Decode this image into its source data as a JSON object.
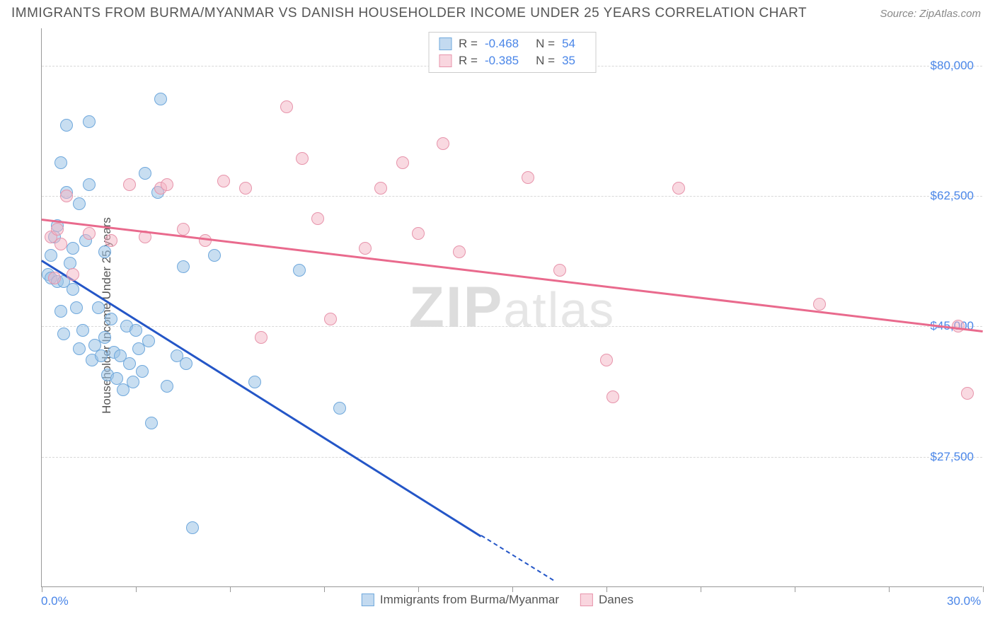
{
  "title": "IMMIGRANTS FROM BURMA/MYANMAR VS DANISH HOUSEHOLDER INCOME UNDER 25 YEARS CORRELATION CHART",
  "source": "Source: ZipAtlas.com",
  "watermark": "ZIPatlas",
  "chart": {
    "type": "scatter",
    "background_color": "#ffffff",
    "grid_color": "#d8d8d8",
    "axis_color": "#999999",
    "ylabel": "Householder Income Under 25 years",
    "ylabel_fontsize": 17,
    "xlim": [
      0,
      30
    ],
    "ylim": [
      10000,
      85000
    ],
    "y_ticks": [
      {
        "value": 27500,
        "label": "$27,500"
      },
      {
        "value": 45000,
        "label": "$45,000"
      },
      {
        "value": 62500,
        "label": "$62,500"
      },
      {
        "value": 80000,
        "label": "$80,000"
      }
    ],
    "x_ticks_minor": [
      0,
      3,
      6,
      9,
      12,
      15,
      18,
      21,
      24,
      27,
      30
    ],
    "x_tick_labels": [
      {
        "value": 0,
        "label": "0.0%"
      },
      {
        "value": 30,
        "label": "30.0%"
      }
    ],
    "series": [
      {
        "key": "blue",
        "name": "Immigrants from Burma/Myanmar",
        "marker_fill": "rgba(155,194,230,0.55)",
        "marker_stroke": "#6fa8dc",
        "line_color": "#2456c7",
        "marker_radius": 9,
        "R": "-0.468",
        "N": "54",
        "trend": {
          "x1": 0,
          "y1": 54000,
          "x2": 14,
          "y2": 17000
        },
        "trend_dashed_ext": {
          "x1": 14,
          "y1": 17000,
          "x2": 16.3,
          "y2": 11000
        },
        "points": [
          [
            0.2,
            52000
          ],
          [
            0.3,
            51500
          ],
          [
            0.3,
            54500
          ],
          [
            0.4,
            57000
          ],
          [
            0.5,
            58500
          ],
          [
            0.5,
            51000
          ],
          [
            0.6,
            67000
          ],
          [
            0.6,
            47000
          ],
          [
            0.7,
            44000
          ],
          [
            0.7,
            51000
          ],
          [
            0.8,
            63000
          ],
          [
            0.8,
            72000
          ],
          [
            0.9,
            53500
          ],
          [
            1.0,
            50000
          ],
          [
            1.0,
            55500
          ],
          [
            1.1,
            47500
          ],
          [
            1.2,
            61500
          ],
          [
            1.2,
            42000
          ],
          [
            1.3,
            44500
          ],
          [
            1.4,
            56500
          ],
          [
            1.5,
            64000
          ],
          [
            1.5,
            72500
          ],
          [
            1.6,
            40500
          ],
          [
            1.7,
            42500
          ],
          [
            1.8,
            47500
          ],
          [
            1.9,
            41000
          ],
          [
            2.0,
            55000
          ],
          [
            2.0,
            43500
          ],
          [
            2.1,
            38500
          ],
          [
            2.2,
            46000
          ],
          [
            2.3,
            41500
          ],
          [
            2.4,
            38000
          ],
          [
            2.5,
            41000
          ],
          [
            2.6,
            36500
          ],
          [
            2.7,
            45000
          ],
          [
            2.8,
            40000
          ],
          [
            2.9,
            37500
          ],
          [
            3.0,
            44500
          ],
          [
            3.1,
            42000
          ],
          [
            3.2,
            39000
          ],
          [
            3.3,
            65500
          ],
          [
            3.4,
            43000
          ],
          [
            3.5,
            32000
          ],
          [
            3.7,
            63000
          ],
          [
            3.8,
            75500
          ],
          [
            4.0,
            37000
          ],
          [
            4.3,
            41000
          ],
          [
            4.5,
            53000
          ],
          [
            4.6,
            40000
          ],
          [
            4.8,
            18000
          ],
          [
            5.5,
            54500
          ],
          [
            6.8,
            37500
          ],
          [
            8.2,
            52500
          ],
          [
            9.5,
            34000
          ]
        ]
      },
      {
        "key": "pink",
        "name": "Danes",
        "marker_fill": "rgba(244,180,196,0.5)",
        "marker_stroke": "#e794ab",
        "line_color": "#e96a8d",
        "marker_radius": 9,
        "R": "-0.385",
        "N": "35",
        "trend": {
          "x1": 0,
          "y1": 59500,
          "x2": 30,
          "y2": 44500
        },
        "points": [
          [
            0.3,
            57000
          ],
          [
            0.4,
            51500
          ],
          [
            0.5,
            58000
          ],
          [
            0.6,
            56000
          ],
          [
            0.8,
            62500
          ],
          [
            1.0,
            52000
          ],
          [
            1.5,
            57500
          ],
          [
            2.2,
            56500
          ],
          [
            2.8,
            64000
          ],
          [
            3.3,
            57000
          ],
          [
            3.8,
            63500
          ],
          [
            4.0,
            64000
          ],
          [
            4.5,
            58000
          ],
          [
            5.2,
            56500
          ],
          [
            5.8,
            64500
          ],
          [
            6.5,
            63500
          ],
          [
            7.0,
            43500
          ],
          [
            7.8,
            74500
          ],
          [
            8.3,
            67500
          ],
          [
            8.8,
            59500
          ],
          [
            9.2,
            46000
          ],
          [
            10.3,
            55500
          ],
          [
            10.8,
            63500
          ],
          [
            11.5,
            67000
          ],
          [
            12.0,
            57500
          ],
          [
            12.8,
            69500
          ],
          [
            13.3,
            55000
          ],
          [
            15.5,
            65000
          ],
          [
            16.5,
            52500
          ],
          [
            18.0,
            40500
          ],
          [
            18.2,
            35500
          ],
          [
            20.3,
            63500
          ],
          [
            24.8,
            48000
          ],
          [
            29.2,
            45000
          ],
          [
            29.5,
            36000
          ]
        ]
      }
    ],
    "legend_top_labels": {
      "R": "R =",
      "N": "N ="
    },
    "bottom_legend": [
      {
        "series": "blue",
        "label": "Immigrants from Burma/Myanmar"
      },
      {
        "series": "pink",
        "label": "Danes"
      }
    ]
  }
}
